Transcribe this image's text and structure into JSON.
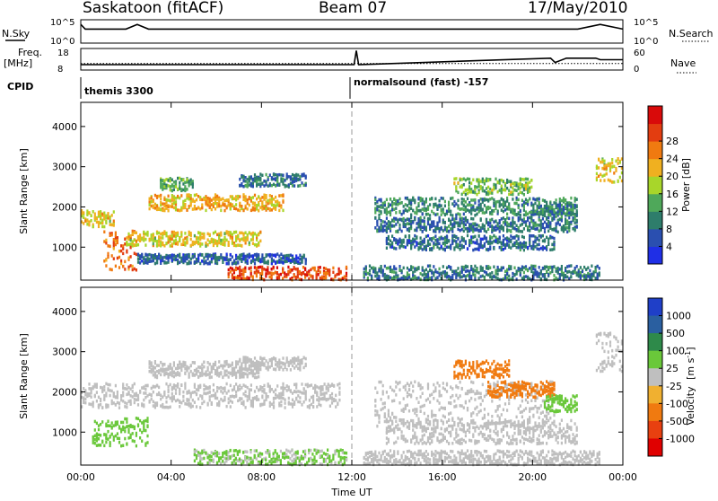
{
  "header": {
    "station": "Saskatoon (fitACF)",
    "beam": "Beam 07",
    "date": "17/May/2010"
  },
  "top_panels": {
    "nsky_label": "N.Sky",
    "nsky_ticks": [
      "10^5",
      "10^0"
    ],
    "nsearch_label": "N.Search",
    "nsearch_ticks": [
      "10^5",
      "10^0"
    ],
    "freq_label_1": "Freq.",
    "freq_label_2": "[MHz]",
    "freq_ticks": [
      "18",
      "8"
    ],
    "nave_label": "Nave",
    "nave_ticks": [
      "60",
      "0"
    ],
    "cpid_label": "CPID",
    "cpid_modes": [
      {
        "name": "themis 3300",
        "start_hour": 0,
        "end_hour": 12.0
      },
      {
        "name": "normalsound (fast) -157",
        "start_hour": 12.0,
        "end_hour": 24
      }
    ]
  },
  "axes": {
    "ylabel": "Slant Range [km]",
    "xlabel": "Time UT",
    "y_ticks": [
      "1000",
      "2000",
      "3000",
      "4000"
    ],
    "y_values": [
      1000,
      2000,
      3000,
      4000
    ],
    "ylim": [
      180,
      4600
    ],
    "x_ticks": [
      "00:00",
      "04:00",
      "08:00",
      "12:00",
      "16:00",
      "20:00",
      "00:00"
    ],
    "x_values": [
      0,
      4,
      8,
      12,
      16,
      20,
      24
    ],
    "xlim": [
      0,
      24
    ]
  },
  "power_colorbar": {
    "label": "Power [dB]",
    "ticks": [
      "4",
      "8",
      "12",
      "16",
      "20",
      "24",
      "28"
    ],
    "colors": [
      "#1f2fe6",
      "#2a4fb0",
      "#2e7d6b",
      "#4fa85a",
      "#a8d62a",
      "#f0b020",
      "#f07a10",
      "#e33d10",
      "#d90a0a"
    ]
  },
  "velocity_colorbar": {
    "label": "Velocity [m s^-1]",
    "ticks": [
      "1000",
      "500",
      "100",
      "25",
      "-25",
      "-100",
      "-500",
      "-1000"
    ],
    "colors": [
      "#1f3fc8",
      "#2a5fa0",
      "#2e8a4a",
      "#6ac83a",
      "#bfbfbf",
      "#f0b030",
      "#f07a10",
      "#e84010",
      "#e00000"
    ]
  },
  "chart_data": [
    {
      "type": "line",
      "title": "N.Sky / N.Search",
      "x": [
        0,
        0.2,
        1,
        2,
        2.5,
        3,
        5,
        8,
        10,
        12,
        13,
        15,
        18,
        20,
        22,
        23,
        24
      ],
      "series": [
        {
          "name": "N.Sky",
          "values": [
            4,
            3,
            3,
            3,
            4,
            3,
            3,
            3,
            3,
            3,
            3,
            3,
            3,
            3,
            3,
            4,
            3
          ]
        }
      ]
    },
    {
      "type": "line",
      "title": "Freq. / Nave",
      "x": [
        0,
        12.1,
        12.2,
        12.3,
        20.8,
        21.0,
        21.5,
        22.8,
        23.0,
        24
      ],
      "series": [
        {
          "name": "Freq.",
          "values": [
            10.5,
            10.5,
            17,
            10.5,
            13.5,
            11.5,
            13.5,
            13.5,
            12.8,
            12.8
          ]
        },
        {
          "name": "Nave",
          "values": [
            18,
            18,
            18,
            18,
            18,
            18,
            18,
            18,
            18,
            18
          ]
        }
      ]
    },
    {
      "type": "heatmap",
      "title": "Power [dB]",
      "xlabel": "Time UT",
      "ylabel": "Slant Range [km]",
      "xlim": [
        0,
        24
      ],
      "ylim": [
        180,
        4600
      ],
      "bands": [
        {
          "t0": 0.0,
          "t1": 1.5,
          "r": 1700,
          "w": 200,
          "v": 18
        },
        {
          "t0": 1.0,
          "t1": 2.5,
          "r": 900,
          "w": 500,
          "v": 24
        },
        {
          "t0": 2.0,
          "t1": 8.0,
          "r": 1200,
          "w": 180,
          "v": 18
        },
        {
          "t0": 3.0,
          "t1": 9.0,
          "r": 2100,
          "w": 200,
          "v": 20
        },
        {
          "t0": 3.5,
          "t1": 5.0,
          "r": 2550,
          "w": 160,
          "v": 12
        },
        {
          "t0": 7.0,
          "t1": 10.0,
          "r": 2650,
          "w": 160,
          "v": 8
        },
        {
          "t0": 2.5,
          "t1": 10.0,
          "r": 700,
          "w": 120,
          "v": 6
        },
        {
          "t0": 6.5,
          "t1": 11.8,
          "r": 300,
          "w": 200,
          "v": 26
        },
        {
          "t0": 12.5,
          "t1": 23.0,
          "r": 350,
          "w": 180,
          "v": 8
        },
        {
          "t0": 13.0,
          "t1": 22.0,
          "r": 2000,
          "w": 220,
          "v": 10
        },
        {
          "t0": 13.0,
          "t1": 22.0,
          "r": 1550,
          "w": 180,
          "v": 8
        },
        {
          "t0": 13.5,
          "t1": 21.0,
          "r": 1100,
          "w": 180,
          "v": 7
        },
        {
          "t0": 16.5,
          "t1": 20.0,
          "r": 2500,
          "w": 200,
          "v": 14
        },
        {
          "t0": 20.0,
          "t1": 22.0,
          "r": 1900,
          "w": 150,
          "v": 9
        },
        {
          "t0": 22.8,
          "t1": 24.0,
          "r": 2900,
          "w": 300,
          "v": 18
        }
      ]
    },
    {
      "type": "heatmap",
      "title": "Velocity [m s^-1]",
      "xlabel": "Time UT",
      "ylabel": "Slant Range [km]",
      "xlim": [
        0,
        24
      ],
      "ylim": [
        180,
        4600
      ],
      "bands": [
        {
          "t0": 0.0,
          "t1": 11.5,
          "r": 1900,
          "w": 300,
          "v": 0
        },
        {
          "t0": 3.0,
          "t1": 8.0,
          "r": 2550,
          "w": 200,
          "v": 0
        },
        {
          "t0": 7.0,
          "t1": 10.0,
          "r": 2700,
          "w": 160,
          "v": 0
        },
        {
          "t0": 0.5,
          "t1": 3.0,
          "r": 1000,
          "w": 350,
          "v": 60
        },
        {
          "t0": 5.0,
          "t1": 11.8,
          "r": 350,
          "w": 200,
          "v": 30
        },
        {
          "t0": 13.0,
          "t1": 21.0,
          "r": 1650,
          "w": 600,
          "v": 0
        },
        {
          "t0": 13.5,
          "t1": 22.0,
          "r": 1000,
          "w": 300,
          "v": 0
        },
        {
          "t0": 16.5,
          "t1": 19.0,
          "r": 2550,
          "w": 220,
          "v": -400
        },
        {
          "t0": 18.0,
          "t1": 21.0,
          "r": 2050,
          "w": 200,
          "v": -300
        },
        {
          "t0": 20.5,
          "t1": 22.0,
          "r": 1700,
          "w": 200,
          "v": 60
        },
        {
          "t0": 12.5,
          "t1": 23.0,
          "r": 350,
          "w": 180,
          "v": 0
        },
        {
          "t0": 22.8,
          "t1": 24.0,
          "r": 3000,
          "w": 500,
          "v": 0
        }
      ]
    }
  ]
}
